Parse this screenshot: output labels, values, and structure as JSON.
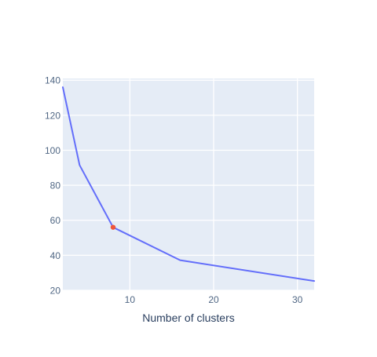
{
  "chart_data": {
    "type": "line",
    "xlabel": "Number of clusters",
    "ylabel": "",
    "xlim": [
      2,
      32
    ],
    "ylim": [
      20,
      141
    ],
    "x_ticks": [
      10,
      20,
      30
    ],
    "y_ticks": [
      20,
      40,
      60,
      80,
      100,
      120,
      140
    ],
    "grid": true,
    "series": [
      {
        "x": [
          2,
          4,
          8,
          16,
          32
        ],
        "y": [
          136,
          91.5,
          56,
          37.2,
          25.3
        ]
      }
    ],
    "highlight": {
      "x": 8,
      "y": 56
    },
    "colors": {
      "line": "#636efa",
      "highlight": "#ef553b",
      "plot_bg": "#e5ecf6",
      "grid": "#ffffff",
      "text": "#2a3f5f",
      "tick_text": "#506784"
    }
  }
}
